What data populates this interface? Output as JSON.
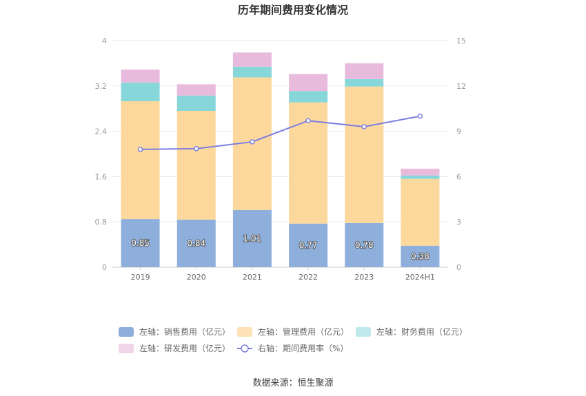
{
  "chart_data": {
    "type": "bar",
    "stacked": true,
    "title": "历年期间费用变化情况",
    "categories": [
      "2019",
      "2020",
      "2021",
      "2022",
      "2023",
      "2024H1"
    ],
    "left_axis": {
      "min": 0,
      "max": 4,
      "ticks": [
        "0",
        "0.8",
        "1.6",
        "2.4",
        "3.2",
        "4"
      ],
      "tick_values": [
        0,
        0.8,
        1.6,
        2.4,
        3.2,
        4
      ]
    },
    "right_axis": {
      "min": 0,
      "max": 15,
      "ticks": [
        "0",
        "3",
        "6",
        "9",
        "12",
        "15"
      ],
      "tick_values": [
        0,
        3,
        6,
        9,
        12,
        15
      ]
    },
    "series": [
      {
        "name": "左轴：销售费用（亿元）",
        "axis": "left",
        "kind": "bar",
        "color": "#8eaedc",
        "values": [
          0.85,
          0.84,
          1.01,
          0.77,
          0.78,
          0.38
        ],
        "labels": [
          "0.85",
          "0.84",
          "1.01",
          "0.77",
          "0.78",
          "0.38"
        ]
      },
      {
        "name": "左轴：管理费用（亿元）",
        "axis": "left",
        "kind": "bar",
        "color": "#fdd89c",
        "values": [
          2.08,
          1.92,
          2.34,
          2.14,
          2.41,
          1.18
        ]
      },
      {
        "name": "左轴：财务费用（亿元）",
        "axis": "left",
        "kind": "bar",
        "color": "#86d6da",
        "values": [
          0.33,
          0.27,
          0.19,
          0.2,
          0.13,
          0.06
        ]
      },
      {
        "name": "左轴：研发费用（亿元）",
        "axis": "left",
        "kind": "bar",
        "color": "#e8bbdc",
        "values": [
          0.23,
          0.2,
          0.25,
          0.3,
          0.28,
          0.12
        ]
      },
      {
        "name": "右轴：期间费用率（%）",
        "axis": "right",
        "kind": "line",
        "color": "#7b7fe0",
        "values": [
          7.8,
          7.85,
          8.3,
          9.7,
          9.3,
          10.0
        ]
      }
    ],
    "legend_position": "bottom",
    "grid": true
  },
  "legend": {
    "items": [
      {
        "label": "左轴：销售费用（亿元）",
        "color": "#8eaedc",
        "kind": "bar"
      },
      {
        "label": "左轴：管理费用（亿元）",
        "color": "#fde2b8",
        "kind": "bar"
      },
      {
        "label": "左轴：财务费用（亿元）",
        "color": "#bfe9ea",
        "kind": "bar"
      },
      {
        "label": "左轴：研发费用（亿元）",
        "color": "#f3d5ea",
        "kind": "bar"
      },
      {
        "label": "右轴：期间费用率（%）",
        "color": "#7b7fe0",
        "kind": "line"
      }
    ]
  },
  "footer": {
    "source": "数据来源：恒生聚源"
  }
}
